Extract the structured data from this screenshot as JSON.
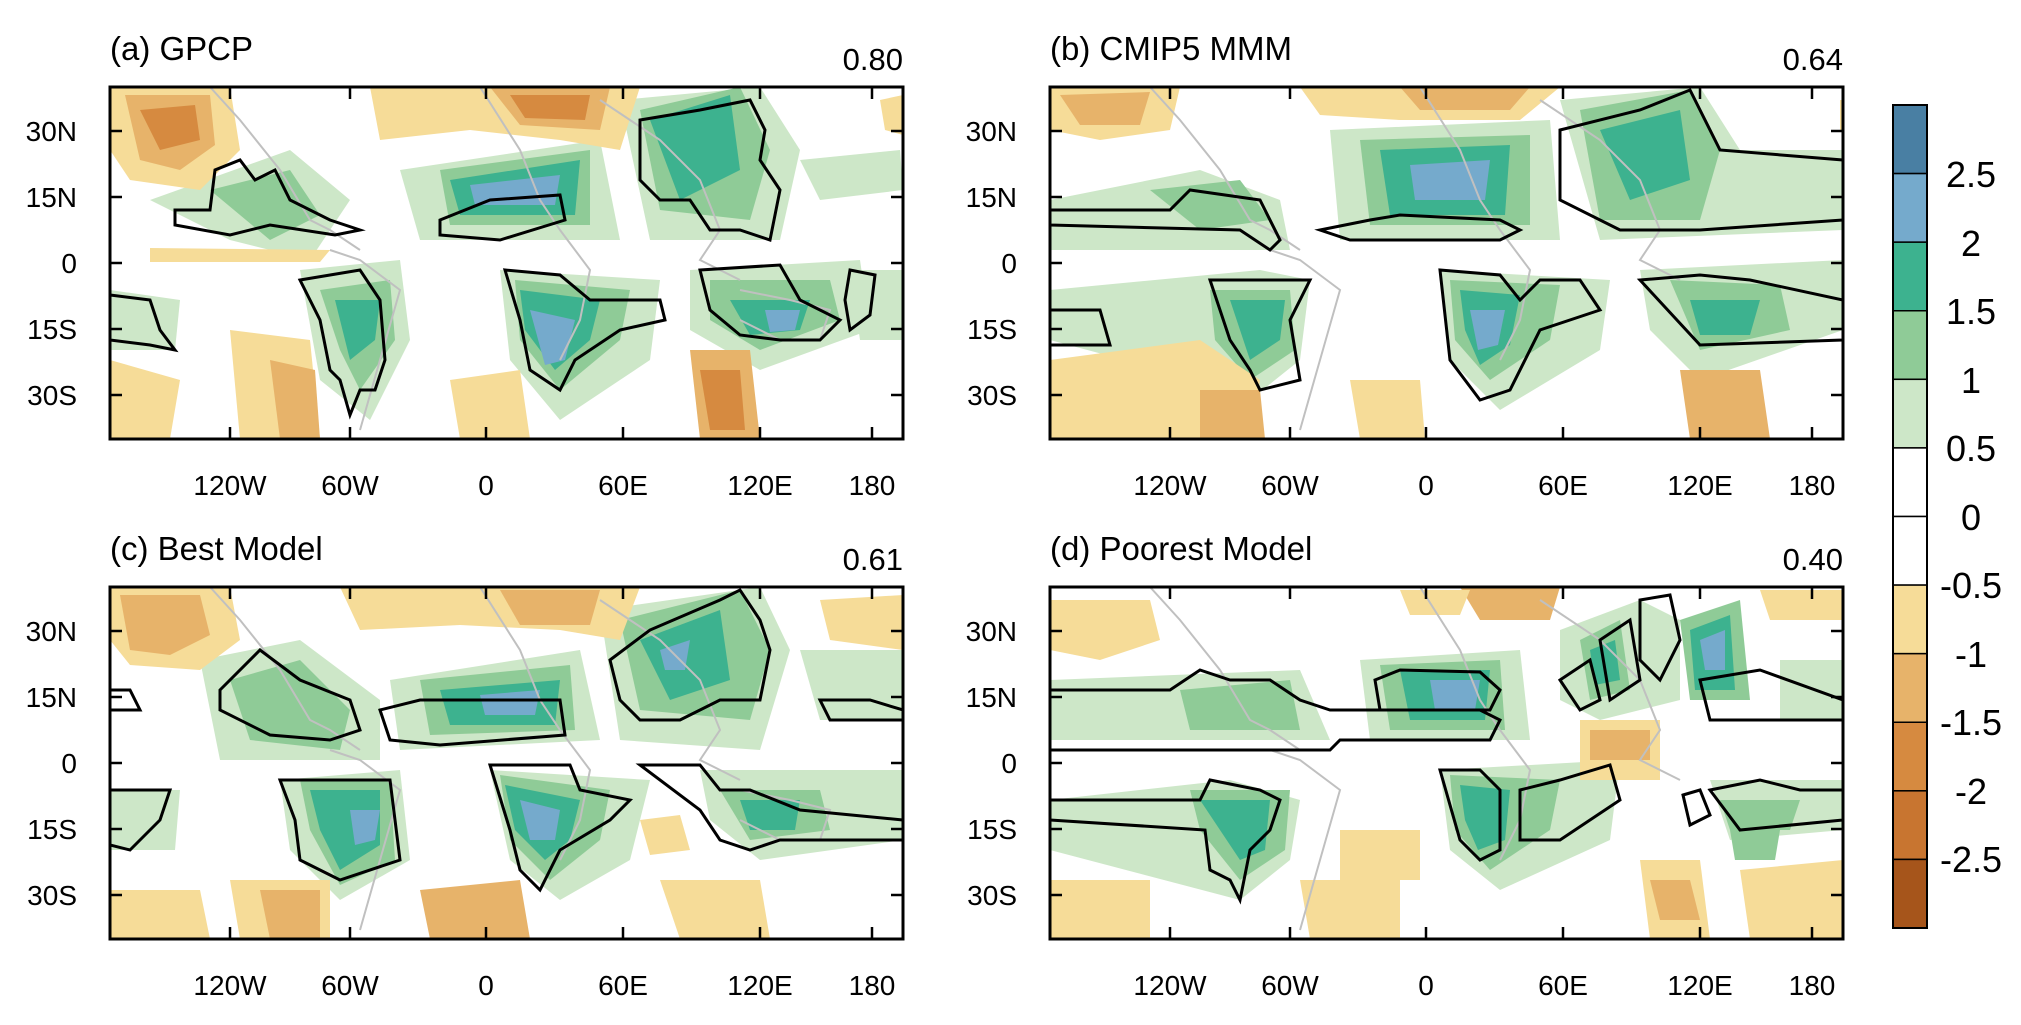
{
  "panels": [
    {
      "title": "(a) GPCP",
      "value": "0.80"
    },
    {
      "title": "(b) CMIP5 MMM",
      "value": "0.64"
    },
    {
      "title": "(c) Best Model",
      "value": "0.61"
    },
    {
      "title": "(d) Poorest Model",
      "value": "0.40"
    }
  ],
  "lat_labels": [
    "30N",
    "15N",
    "0",
    "15S",
    "30S"
  ],
  "lon_labels": [
    "120W",
    "60W",
    "0",
    "60E",
    "120E",
    "180"
  ],
  "colorbar": {
    "labels": [
      "2.5",
      "2",
      "1.5",
      "1",
      "0.5",
      "0",
      "-0.5",
      "-1",
      "-1.5",
      "-2",
      "-2.5"
    ],
    "colors": [
      "#497fa3",
      "#75aacc",
      "#3db28f",
      "#8fcb97",
      "#cde7c8",
      "#ffffff",
      "#ffffff",
      "#f6dc98",
      "#e7b36a",
      "#d68a40",
      "#c87530",
      "#a6551b"
    ]
  },
  "palette": {
    "coast": "#c0c0c0",
    "contour": "#000000"
  }
}
